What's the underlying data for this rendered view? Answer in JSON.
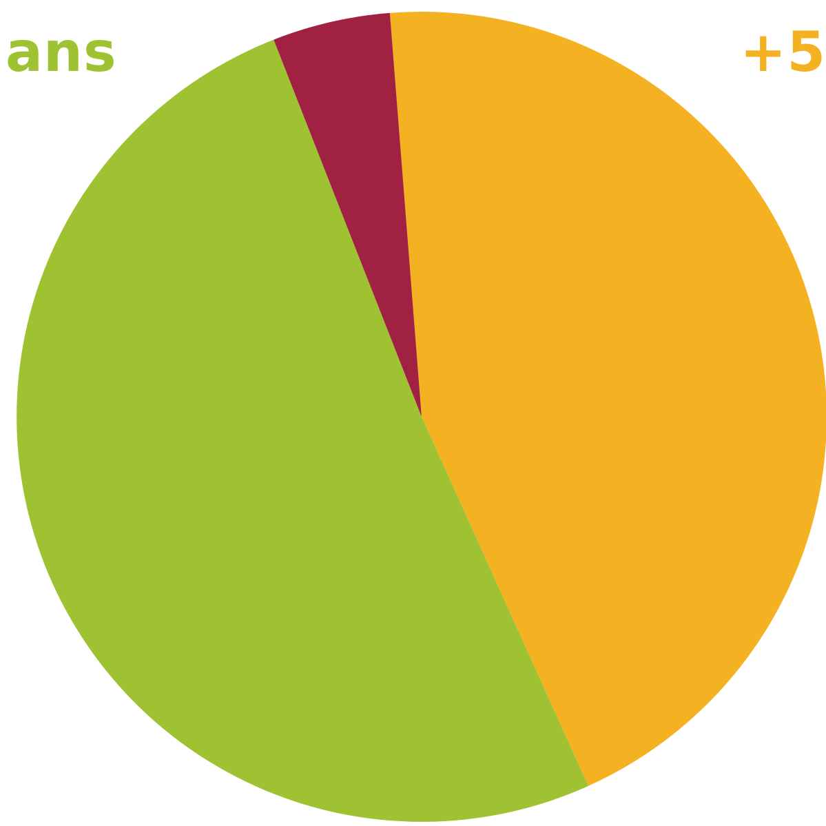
{
  "chart_data": {
    "type": "pie",
    "start_angle_deg": -4.5,
    "direction": "clockwise",
    "slices": [
      {
        "label": "",
        "value": 44.5,
        "color": "#F4B223"
      },
      {
        "label": "",
        "value": 50.8,
        "color": "#9FC232"
      },
      {
        "label": "",
        "value": 4.7,
        "color": "#A12142"
      }
    ],
    "labels": {
      "left": {
        "text": "ans",
        "color": "#9FC232"
      },
      "right": {
        "text": "+5",
        "color": "#F4B223"
      }
    }
  }
}
